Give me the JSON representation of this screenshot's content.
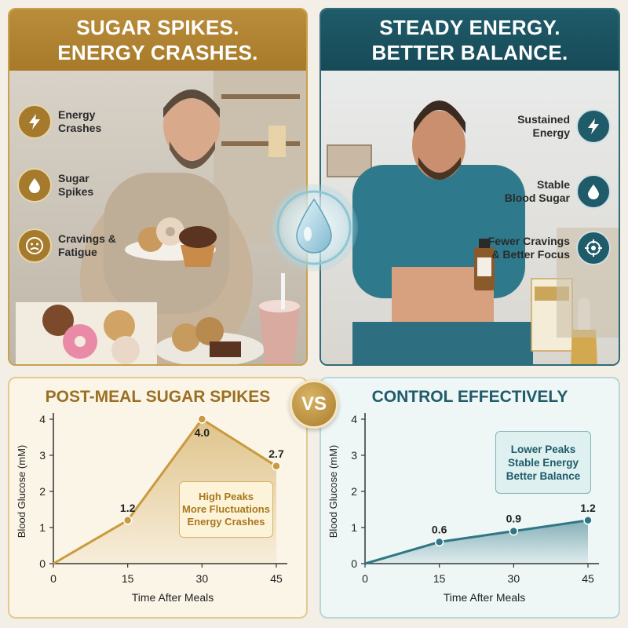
{
  "left_panel": {
    "headline_1": "SUGAR SPIKES.",
    "headline_2": "ENERGY CRASHES.",
    "features": [
      {
        "icon": "lightning-icon",
        "line1": "Energy",
        "line2": "Crashes"
      },
      {
        "icon": "water-drop-icon",
        "line1": "Sugar",
        "line2": "Spikes"
      },
      {
        "icon": "sad-face-icon",
        "line1": "Cravings &",
        "line2": "Fatigue"
      }
    ]
  },
  "right_panel": {
    "headline_1": "STEADY ENERGY.",
    "headline_2": "BETTER BALANCE.",
    "features": [
      {
        "icon": "lightning-icon",
        "line1": "Sustained",
        "line2": "Energy"
      },
      {
        "icon": "water-drop-icon",
        "line1": "Stable",
        "line2": "Blood Sugar"
      },
      {
        "icon": "target-icon",
        "line1": "Fewer Cravings",
        "line2": "& Better Focus"
      }
    ]
  },
  "vs_label": "VS",
  "colors": {
    "gold": "#b98d3a",
    "teal": "#1f5b69"
  },
  "chart_data": [
    {
      "type": "area",
      "title": "POST-MEAL SUGAR SPIKES",
      "xlabel": "Time After Meals",
      "ylabel": "Blood Glucose (mM)",
      "x": [
        0,
        15,
        30,
        45
      ],
      "y": [
        0,
        1.2,
        4.0,
        2.7
      ],
      "data_labels": [
        "",
        "1.2",
        "4.0",
        "2.7"
      ],
      "xticks": [
        "0",
        "15",
        "30",
        "45"
      ],
      "yticks": [
        "0",
        "1",
        "2",
        "3",
        "4"
      ],
      "ylim": [
        0,
        4
      ],
      "xlim": [
        0,
        45
      ],
      "color": "#c99a3e",
      "annotation": [
        "High Peaks",
        "More Fluctuations",
        "Energy Crashes"
      ]
    },
    {
      "type": "area",
      "title": "CONTROL EFFECTIVELY",
      "xlabel": "Time After Meals",
      "ylabel": "Blood Glucose (mM)",
      "x": [
        0,
        15,
        30,
        45
      ],
      "y": [
        0,
        0.6,
        0.9,
        1.2
      ],
      "data_labels": [
        "",
        "0.6",
        "0.9",
        "1.2"
      ],
      "xticks": [
        "0",
        "15",
        "30",
        "45"
      ],
      "yticks": [
        "0",
        "1",
        "2",
        "3",
        "4"
      ],
      "ylim": [
        0,
        4
      ],
      "xlim": [
        0,
        45
      ],
      "color": "#2f7684",
      "annotation": [
        "Lower Peaks",
        "Stable Energy",
        "Better Balance"
      ]
    }
  ]
}
